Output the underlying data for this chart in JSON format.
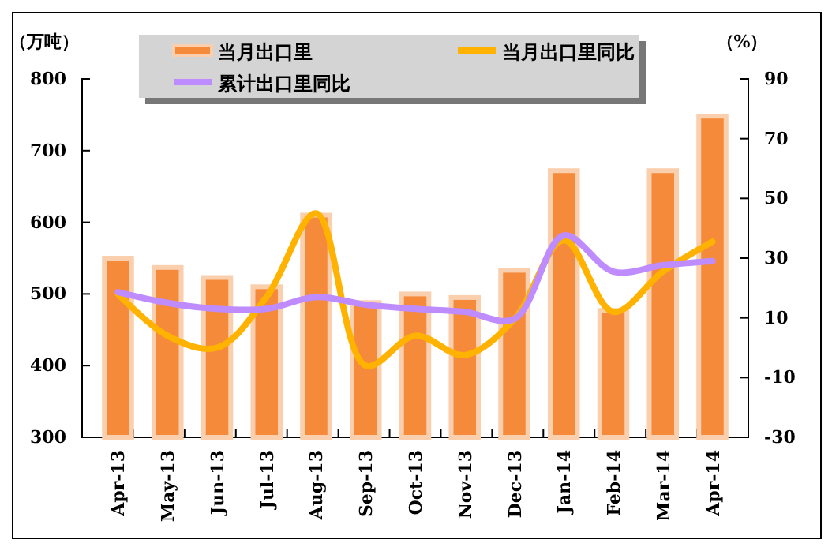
{
  "chart_data": {
    "type": "bar",
    "ylabel": "（万吨）",
    "y2label": "（%）",
    "categories": [
      "Apr-13",
      "May-13",
      "Jun-13",
      "Jul-13",
      "Aug-13",
      "Sep-13",
      "Oct-13",
      "Nov-13",
      "Dec-13",
      "Jan-14",
      "Feb-14",
      "Mar-14",
      "Apr-14"
    ],
    "series": [
      {
        "name": "当月出口里",
        "color": "#f58a3a",
        "values": [
          550,
          537,
          523,
          510,
          610,
          488,
          500,
          495,
          533,
          672,
          477,
          672,
          748
        ]
      },
      {
        "name": "当月出口里同比",
        "type": "line",
        "axis": "y2",
        "color": "#ffb300",
        "values": [
          18,
          4,
          0,
          17,
          45,
          -6,
          4,
          -2.5,
          9.6,
          36,
          12,
          25.5,
          35.5
        ]
      },
      {
        "name": "累计出口里同比",
        "type": "line",
        "axis": "y2",
        "color": "#bf8cff",
        "values": [
          18.6,
          15,
          13,
          13,
          17,
          14.4,
          13,
          12,
          9.6,
          37.6,
          25.5,
          27.6,
          29
        ]
      }
    ],
    "ylim": [
      300,
      800
    ],
    "yticks": [
      300,
      400,
      500,
      600,
      700,
      800
    ],
    "y2lim": [
      -30,
      90
    ],
    "y2ticks": [
      -30,
      -10,
      10,
      30,
      50,
      70,
      90
    ],
    "legend": "top",
    "grid": false,
    "marker": "none",
    "line_style": "solid"
  }
}
